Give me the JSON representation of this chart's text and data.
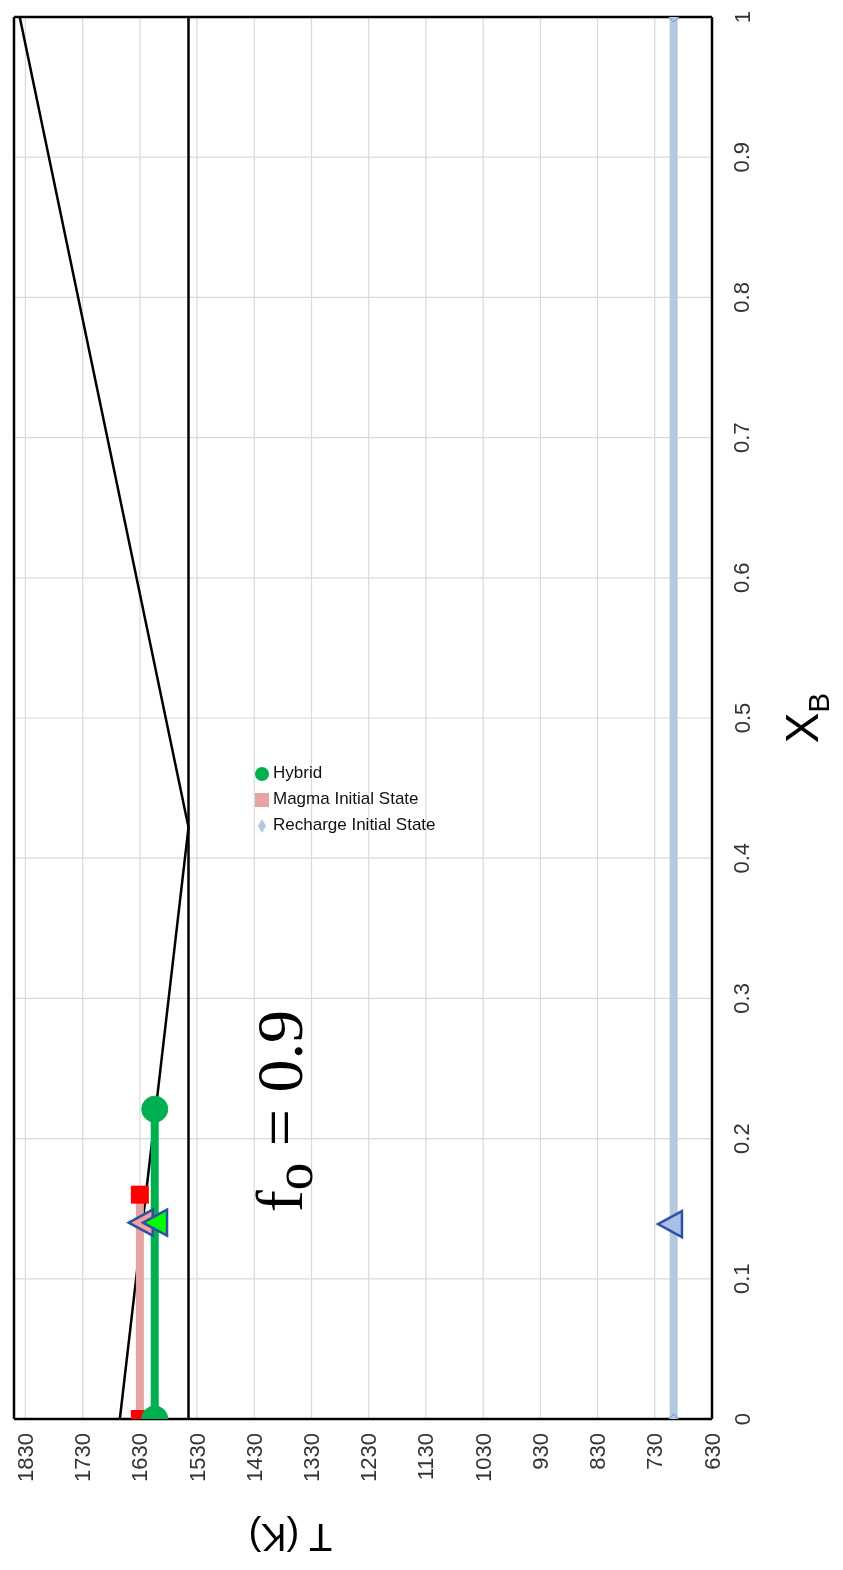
{
  "chart_data": {
    "type": "line",
    "xlabel": "T (K)",
    "ylabel": "X$_{B}$",
    "xlim": [
      1850,
      630
    ],
    "xticks": [
      1830,
      1730,
      1630,
      1530,
      1430,
      1330,
      1230,
      1130,
      1030,
      930,
      830,
      730,
      630
    ],
    "ylim": [
      0,
      1
    ],
    "yticks": [
      0,
      0.1,
      0.2,
      0.3,
      0.4,
      0.5,
      0.6,
      0.7,
      0.8,
      0.9,
      1
    ],
    "grid": true,
    "legend": "center",
    "ref_lines": [
      {
        "axis": "x",
        "value": 1545,
        "color": "#000000"
      }
    ],
    "annotations": [
      "f$_{o}$ = 0.9"
    ],
    "series": [
      {
        "x": [
          1665,
          1545,
          1840
        ],
        "values": [
          0,
          0.422,
          1
        ],
        "color": "#000000",
        "marker": "none"
      },
      {
        "name": "Magma Initial State",
        "x": [
          1630,
          1630
        ],
        "values": [
          0,
          0.16
        ],
        "color": "#e6a3a3",
        "colors": [
          "#ff0000",
          "#ff0000"
        ],
        "marker": "square"
      },
      {
        "name": "Recharge Initial State",
        "x": [
          697,
          697
        ],
        "values": [
          0,
          1
        ],
        "color": "#b4c8e0",
        "marker": "diamond"
      },
      {
        "name": "Hybrid",
        "x": [
          1604,
          1604
        ],
        "values": [
          0,
          0.221
        ],
        "color": "#00b050",
        "marker": "circle"
      },
      {
        "type": "scatter",
        "x": [
          1625
        ],
        "values": [
          0.14
        ],
        "color": "#f4a0a0",
        "marker": "triangle"
      },
      {
        "type": "scatter",
        "x": [
          1600
        ],
        "values": [
          0.14
        ],
        "color": "#00ff00",
        "marker": "triangle"
      },
      {
        "type": "scatter",
        "x": [
          700
        ],
        "values": [
          0.139
        ],
        "color": "#a8c0e8",
        "marker": "triangle"
      }
    ]
  }
}
